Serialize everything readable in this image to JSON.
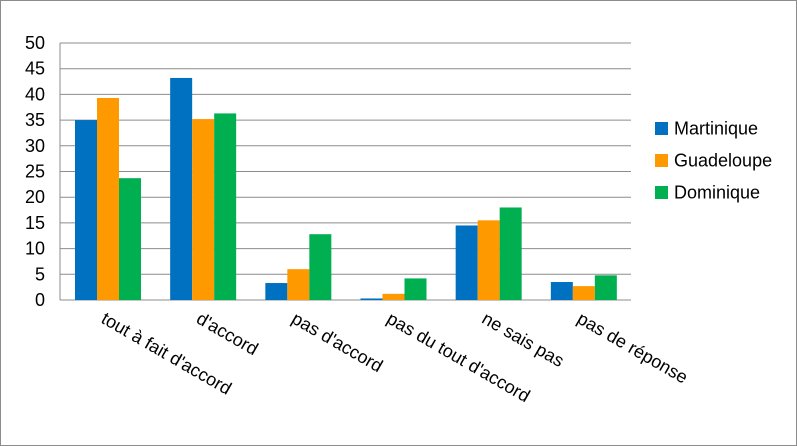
{
  "chart_data": {
    "type": "bar",
    "title": "",
    "xlabel": "",
    "ylabel": "",
    "ylim": [
      0,
      50
    ],
    "ytick_step": 5,
    "grid": true,
    "legend_position": "right",
    "categories": [
      "tout à fait d'accord",
      "d'accord",
      "pas d'accord",
      "pas du tout d'accord",
      "ne sais pas",
      "pas de réponse"
    ],
    "series": [
      {
        "name": "Martinique",
        "color": "#0070C0",
        "values": [
          35,
          43.2,
          3.3,
          0.3,
          14.5,
          3.5
        ]
      },
      {
        "name": "Guadeloupe",
        "color": "#FF9900",
        "values": [
          39.3,
          35.2,
          6,
          1.2,
          15.5,
          2.7
        ]
      },
      {
        "name": "Dominique",
        "color": "#00B050",
        "values": [
          23.7,
          36.3,
          12.8,
          4.2,
          18,
          4.8
        ]
      }
    ]
  }
}
